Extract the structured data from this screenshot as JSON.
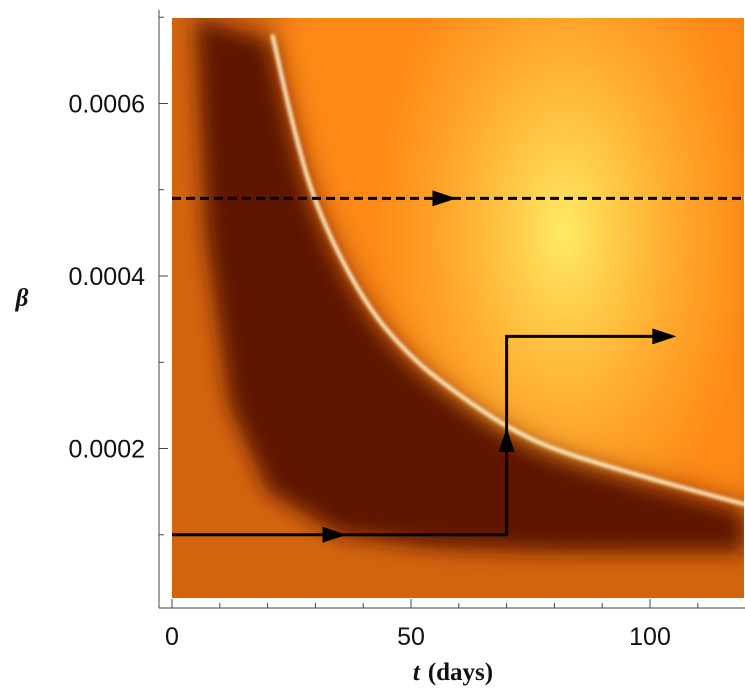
{
  "chart_data": {
    "type": "heatmap",
    "title": "",
    "xlabel": "t (days)",
    "xlabel_var": "t",
    "xlabel_unit": "(days)",
    "ylabel": "β",
    "xlim": [
      0,
      120
    ],
    "ylim": [
      0,
      0.0007
    ],
    "x_ticks": [
      {
        "value": 0,
        "label": "0"
      },
      {
        "value": 50,
        "label": "50"
      },
      {
        "value": 100,
        "label": "100"
      }
    ],
    "y_ticks": [
      {
        "value": 0.0002,
        "label": "0.0002"
      },
      {
        "value": 0.0004,
        "label": "0.0004"
      },
      {
        "value": 0.0006,
        "label": "0.0006"
      }
    ],
    "x_minor_step": 10,
    "y_minor_step": 0.0001,
    "grid": false,
    "legend": "none",
    "colormap": [
      "#5a1200",
      "#8a3208",
      "#d2640e",
      "#ff8c10",
      "#ffd043",
      "#fff06a"
    ],
    "ridge_curve": {
      "description_points_x": [
        21,
        25,
        30,
        40,
        50,
        60,
        70,
        80,
        100,
        120
      ],
      "points_y": [
        0.00068,
        0.00058,
        0.00048,
        0.00037,
        0.000305,
        0.000262,
        0.000225,
        0.000198,
        0.000165,
        0.000135
      ]
    },
    "series": [
      {
        "style": "dashed",
        "color": "#000000",
        "points": [
          [
            0,
            0.00049
          ],
          [
            120,
            0.00049
          ]
        ],
        "arrow_at": [
          [
            57,
            0.00049
          ]
        ]
      },
      {
        "style": "solid",
        "color": "#000000",
        "points": [
          [
            0,
            0.0001
          ],
          [
            70,
            0.0001
          ],
          [
            70,
            0.00033
          ],
          [
            103,
            0.00033
          ]
        ],
        "arrow_at": [
          [
            34,
            0.0001
          ],
          [
            70,
            0.00021
          ],
          [
            103,
            0.00033
          ]
        ]
      }
    ]
  }
}
